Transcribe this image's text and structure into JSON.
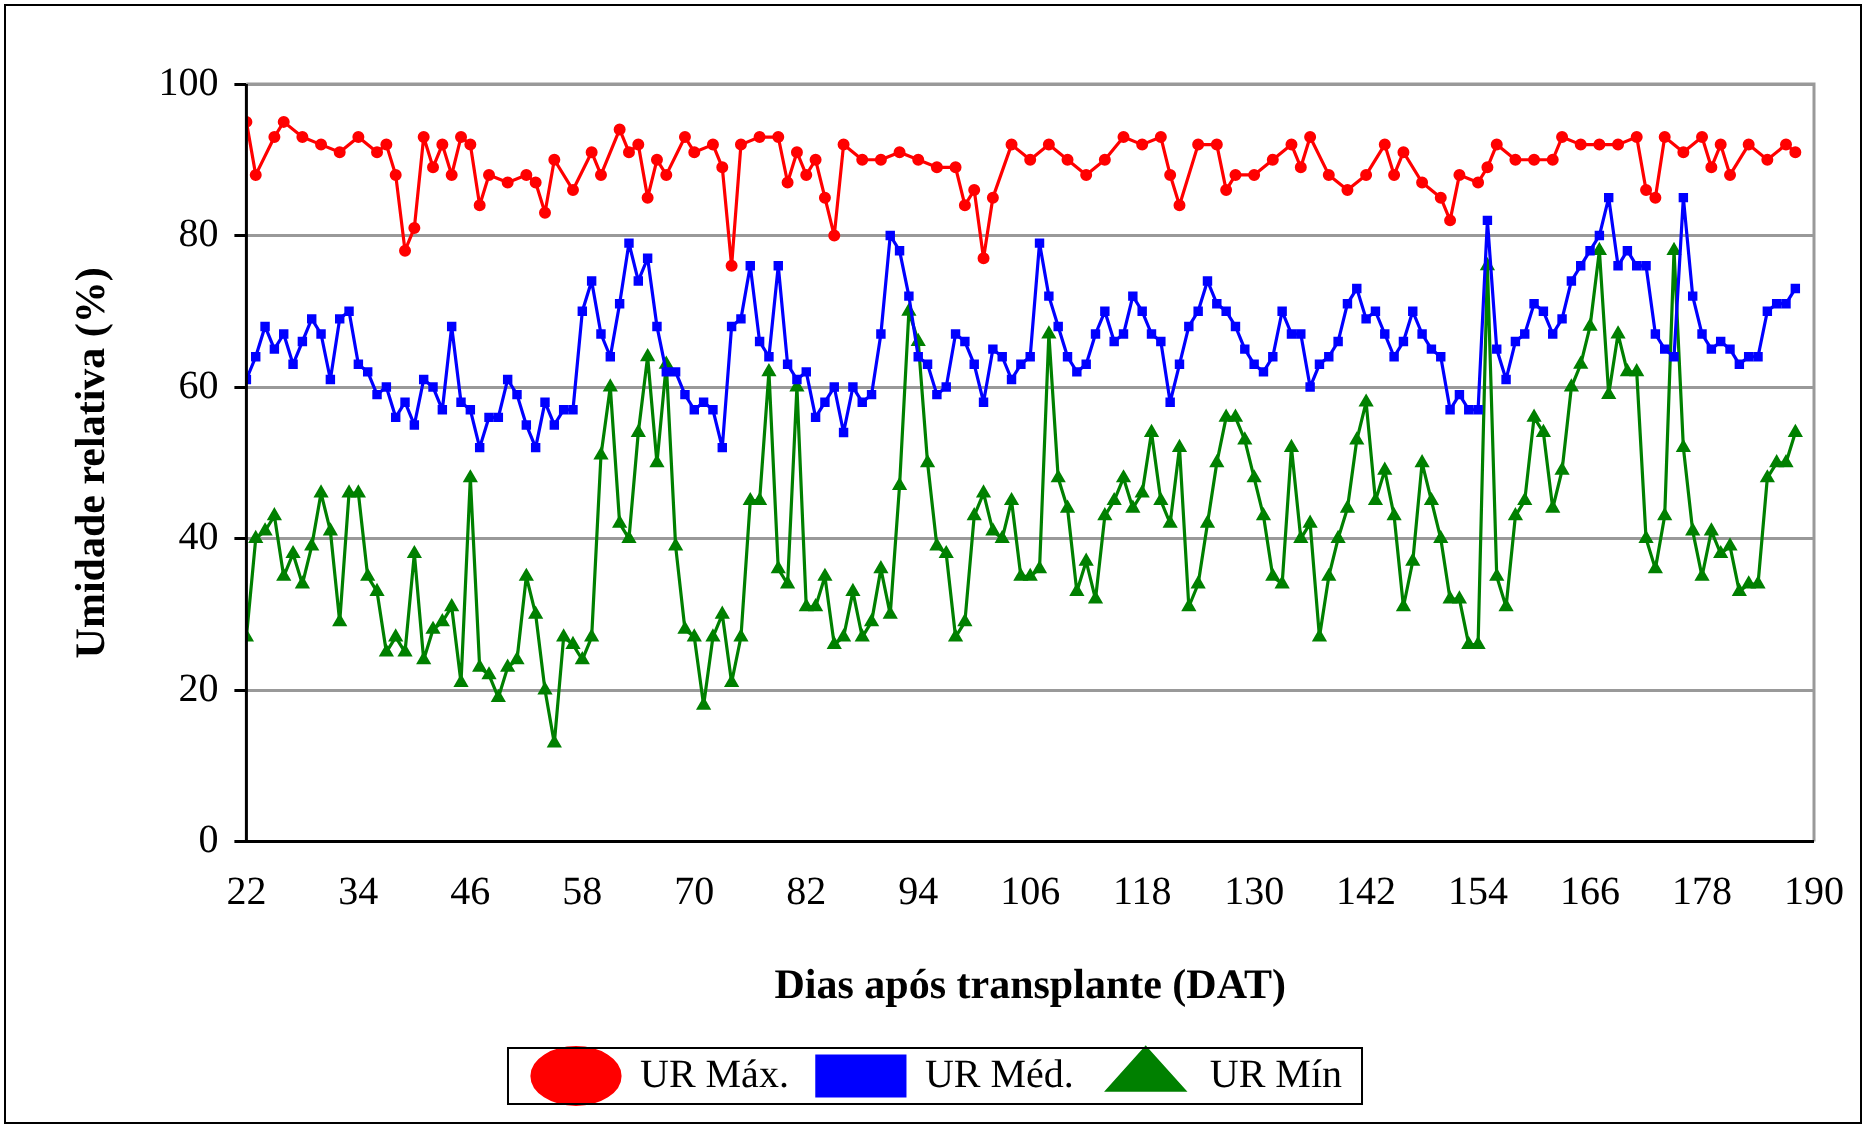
{
  "chart_data": {
    "type": "line",
    "xlabel": "Dias após transplante (DAT)",
    "ylabel": "Umidade relativa (%)",
    "xlim": [
      22,
      190
    ],
    "xticks": [
      22,
      34,
      46,
      58,
      70,
      82,
      94,
      106,
      118,
      130,
      142,
      154,
      166,
      178,
      190
    ],
    "ylim": [
      0,
      100
    ],
    "yticks": [
      0,
      20,
      40,
      60,
      80,
      100
    ],
    "grid": "y",
    "legend": "bottom",
    "line_style": "solid",
    "x": [
      22,
      23,
      24,
      25,
      26,
      27,
      28,
      29,
      30,
      31,
      32,
      33,
      34,
      35,
      36,
      37,
      38,
      39,
      40,
      41,
      42,
      43,
      44,
      45,
      46,
      47,
      48,
      49,
      50,
      51,
      52,
      53,
      54,
      55,
      56,
      57,
      58,
      59,
      60,
      61,
      62,
      63,
      64,
      65,
      66,
      67,
      68,
      69,
      70,
      71,
      72,
      73,
      74,
      75,
      76,
      77,
      78,
      79,
      80,
      81,
      82,
      83,
      84,
      85,
      86,
      87,
      88,
      89,
      90,
      91,
      92,
      93,
      94,
      95,
      96,
      97,
      98,
      99,
      100,
      101,
      102,
      103,
      104,
      105,
      106,
      107,
      108,
      109,
      110,
      111,
      112,
      113,
      114,
      115,
      116,
      117,
      118,
      119,
      120,
      121,
      122,
      123,
      124,
      125,
      126,
      127,
      128,
      129,
      130,
      131,
      132,
      133,
      134,
      135,
      136,
      137,
      138,
      139,
      140,
      141,
      142,
      143,
      144,
      145,
      146,
      147,
      148,
      149,
      150,
      151,
      152,
      153,
      154,
      155,
      156,
      157,
      158,
      159,
      160,
      161,
      162,
      163,
      164,
      165,
      166,
      167,
      168,
      169,
      170,
      171,
      172,
      173,
      174,
      175,
      176,
      177,
      178,
      179,
      180,
      181,
      182,
      183,
      184,
      185,
      186,
      187,
      188
    ],
    "series": [
      {
        "name": "UR Máx.",
        "color": "#ff0000",
        "marker": "circle",
        "x": [
          22,
          23,
          25,
          26,
          28,
          30,
          32,
          34,
          36,
          37,
          38,
          39,
          40,
          41,
          42,
          43,
          44,
          45,
          46,
          47,
          48,
          50,
          52,
          53,
          54,
          55,
          57,
          59,
          60,
          62,
          63,
          64,
          65,
          66,
          67,
          69,
          70,
          72,
          73,
          74,
          75,
          77,
          79,
          80,
          81,
          82,
          83,
          84,
          85,
          86,
          88,
          90,
          92,
          94,
          96,
          98,
          99,
          100,
          101,
          102,
          104,
          106,
          108,
          110,
          112,
          114,
          116,
          118,
          120,
          121,
          122,
          124,
          126,
          127,
          128,
          130,
          132,
          134,
          135,
          136,
          138,
          140,
          142,
          144,
          145,
          146,
          148,
          150,
          151,
          152,
          154,
          155,
          156,
          158,
          160,
          162,
          163,
          165,
          167,
          169,
          171,
          172,
          173,
          174,
          176,
          178,
          179,
          180,
          181,
          183,
          185,
          187,
          188
        ],
        "values": [
          95,
          88,
          93,
          95,
          93,
          92,
          91,
          93,
          91,
          92,
          88,
          78,
          81,
          93,
          89,
          92,
          88,
          93,
          92,
          84,
          88,
          87,
          88,
          87,
          83,
          90,
          86,
          91,
          88,
          94,
          91,
          92,
          85,
          90,
          88,
          93,
          91,
          92,
          89,
          76,
          92,
          93,
          93,
          87,
          91,
          88,
          90,
          85,
          80,
          92,
          90,
          90,
          91,
          90,
          89,
          89,
          84,
          86,
          77,
          85,
          92,
          90,
          92,
          90,
          88,
          90,
          93,
          92,
          93,
          88,
          84,
          92,
          92,
          86,
          88,
          88,
          90,
          92,
          89,
          93,
          88,
          86,
          88,
          92,
          88,
          91,
          87,
          85,
          82,
          88,
          87,
          89,
          92,
          90,
          90,
          90,
          93,
          92,
          92,
          92,
          93,
          86,
          85,
          93,
          91,
          93,
          89,
          92,
          88,
          92,
          90,
          92,
          91
        ]
      },
      {
        "name": "UR Méd.",
        "color": "#0000ff",
        "marker": "square",
        "values": [
          61,
          64,
          68,
          65,
          67,
          63,
          66,
          69,
          67,
          61,
          69,
          70,
          63,
          62,
          59,
          60,
          56,
          58,
          55,
          61,
          60,
          57,
          68,
          58,
          57,
          52,
          56,
          56,
          61,
          59,
          55,
          52,
          58,
          55,
          57,
          57,
          70,
          74,
          67,
          64,
          71,
          79,
          74,
          77,
          68,
          62,
          62,
          59,
          57,
          58,
          57,
          52,
          68,
          69,
          76,
          66,
          64,
          76,
          63,
          61,
          62,
          56,
          58,
          60,
          54,
          60,
          58,
          59,
          67,
          80,
          78,
          72,
          64,
          63,
          59,
          60,
          67,
          66,
          63,
          58,
          65,
          64,
          61,
          63,
          64,
          79,
          72,
          68,
          64,
          62,
          63,
          67,
          70,
          66,
          67,
          72,
          70,
          67,
          66,
          58,
          63,
          68,
          70,
          74,
          71,
          70,
          68,
          65,
          63,
          62,
          64,
          70,
          67,
          67,
          60,
          63,
          64,
          66,
          71,
          73,
          69,
          70,
          67,
          64,
          66,
          70,
          67,
          65,
          64,
          57,
          59,
          57,
          57,
          82,
          65,
          61,
          66,
          67,
          71,
          70,
          67,
          69,
          74,
          76,
          78,
          80,
          85,
          76,
          78,
          76,
          76,
          67,
          65,
          64,
          85,
          72,
          67,
          65,
          66,
          65,
          63,
          64,
          64,
          70,
          71,
          71,
          73
        ]
      },
      {
        "name": "UR Mín",
        "color": "#008000",
        "marker": "triangle",
        "values": [
          27,
          40,
          41,
          43,
          35,
          38,
          34,
          39,
          46,
          41,
          29,
          46,
          46,
          35,
          33,
          25,
          27,
          25,
          38,
          24,
          28,
          29,
          31,
          21,
          48,
          23,
          22,
          19,
          23,
          24,
          35,
          30,
          20,
          13,
          27,
          26,
          24,
          27,
          51,
          60,
          42,
          40,
          54,
          64,
          50,
          63,
          39,
          28,
          27,
          18,
          27,
          30,
          21,
          27,
          45,
          45,
          62,
          36,
          34,
          60,
          31,
          31,
          35,
          26,
          27,
          33,
          27,
          29,
          36,
          30,
          47,
          70,
          66,
          50,
          39,
          38,
          27,
          29,
          43,
          46,
          41,
          40,
          45,
          35,
          35,
          36,
          67,
          48,
          44,
          33,
          37,
          32,
          43,
          45,
          48,
          44,
          46,
          54,
          45,
          42,
          52,
          31,
          34,
          42,
          50,
          56,
          56,
          53,
          48,
          43,
          35,
          34,
          52,
          40,
          42,
          27,
          35,
          40,
          44,
          53,
          58,
          45,
          49,
          43,
          31,
          37,
          50,
          45,
          40,
          32,
          32,
          26,
          26,
          76,
          35,
          31,
          43,
          45,
          56,
          54,
          44,
          49,
          60,
          63,
          68,
          78,
          59,
          67,
          62,
          62,
          40,
          36,
          43,
          78,
          52,
          41,
          35,
          41,
          38,
          39,
          33,
          34,
          34,
          48,
          50,
          50,
          54
        ]
      }
    ]
  }
}
